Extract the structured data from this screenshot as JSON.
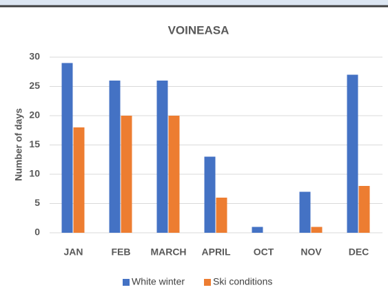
{
  "chart_data": {
    "type": "bar",
    "title": "VOINEASA",
    "y_label": "Number of days",
    "categories": [
      "JAN",
      "FEB",
      "MARCH",
      "APRIL",
      "OCT",
      "NOV",
      "DEC"
    ],
    "series": [
      {
        "name": "White winter",
        "color": "#4472c4",
        "values": [
          29,
          26,
          26,
          13,
          1,
          7,
          27
        ]
      },
      {
        "name": "Ski conditions",
        "color": "#ed7d31",
        "values": [
          18,
          20,
          20,
          6,
          0,
          1,
          8
        ]
      }
    ],
    "ylim": [
      0,
      30
    ],
    "yticks": [
      0,
      5,
      10,
      15,
      20,
      25,
      30
    ],
    "grid": true,
    "legend": "bottom"
  }
}
